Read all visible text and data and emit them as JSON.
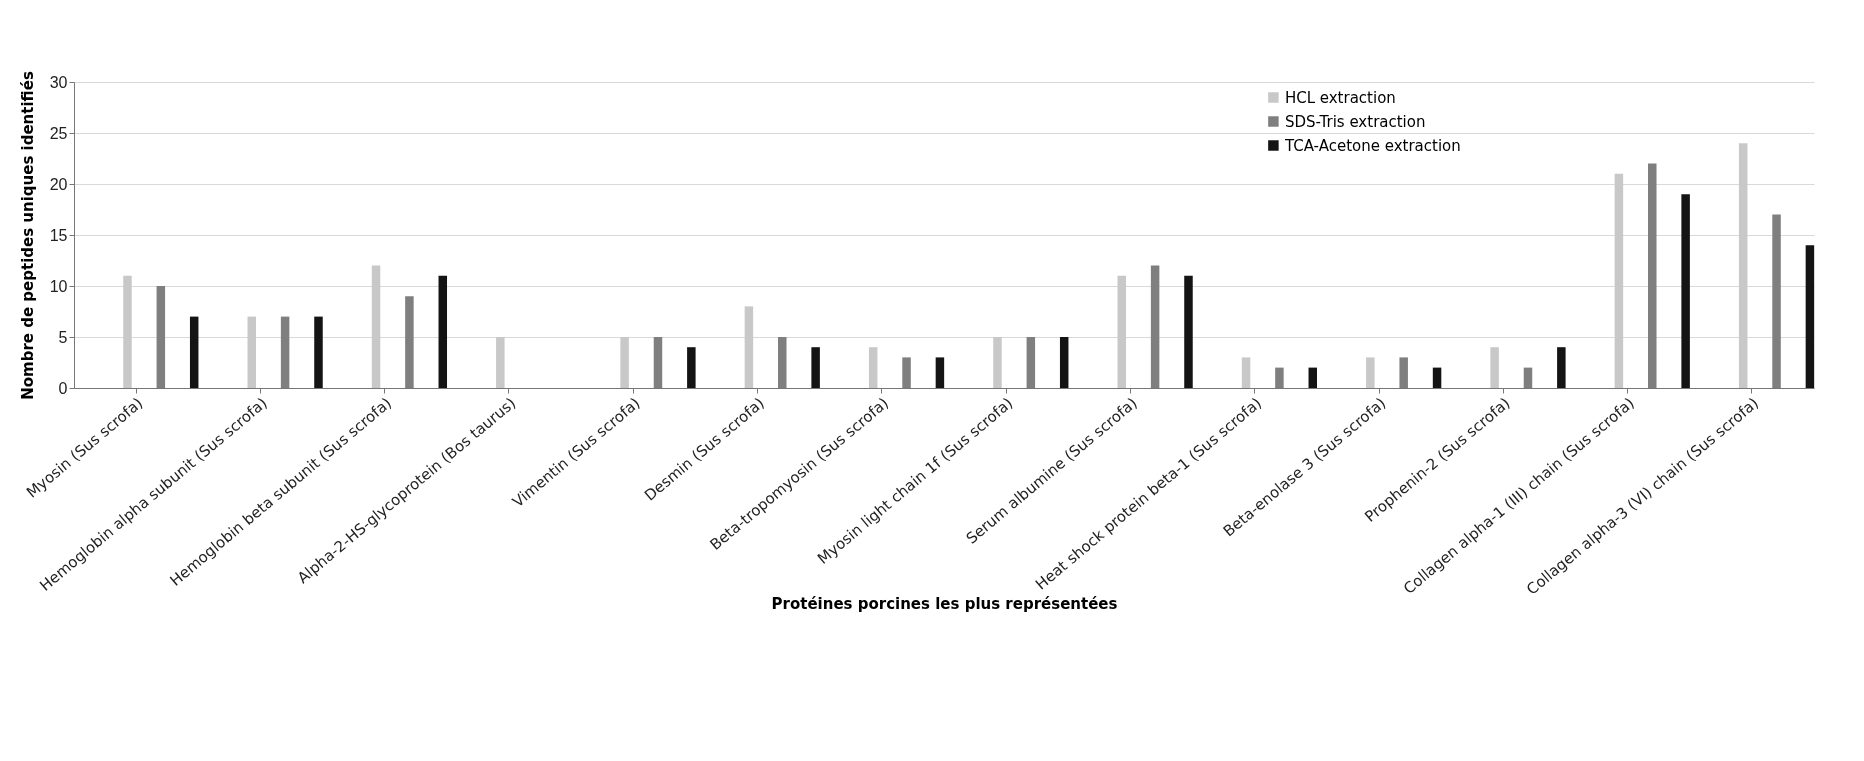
{
  "chart_data": {
    "type": "bar",
    "xlabel": "Protéines porcines les plus représentées",
    "ylabel": "Nombre de peptides uniques identifiés",
    "categories": [
      "Myosin (Sus scrofa)",
      "Hemoglobin alpha subunit (Sus scrofa)",
      "Hemoglobin beta subunit (Sus scrofa)",
      "Alpha-2-HS-glycoprotein (Bos taurus)",
      "Vimentin (Sus scrofa)",
      "Desmin (Sus scrofa)",
      "Beta-tropomyosin (Sus scrofa)",
      "Myosin light chain 1f (Sus scrofa)",
      "Serum albumine (Sus scrofa)",
      "Heat shock protein beta-1 (Sus scrofa)",
      "Beta-enolase 3 (Sus scrofa)",
      "Prophenin-2 (Sus scrofa)",
      "Collagen alpha-1 (III) chain (Sus scrofa)",
      "Collagen alpha-3 (VI) chain (Sus scrofa)"
    ],
    "series": [
      {
        "name": "HCL extraction",
        "color": "#c8c8c8",
        "values": [
          11,
          7,
          12,
          5,
          5,
          8,
          4,
          5,
          11,
          3,
          3,
          4,
          21,
          24
        ]
      },
      {
        "name": "SDS-Tris extraction",
        "color": "#7f7f7f",
        "values": [
          10,
          7,
          9,
          0,
          5,
          5,
          3,
          5,
          12,
          2,
          3,
          2,
          22,
          17
        ]
      },
      {
        "name": "TCA-Acetone extraction",
        "color": "#141414",
        "values": [
          7,
          7,
          11,
          0,
          4,
          4,
          3,
          5,
          11,
          2,
          2,
          4,
          19,
          14
        ]
      }
    ],
    "ylim": [
      0,
      30
    ],
    "yticks": [
      0,
      5,
      10,
      15,
      20,
      25,
      30
    ],
    "grid": "y",
    "legend": "top right"
  }
}
